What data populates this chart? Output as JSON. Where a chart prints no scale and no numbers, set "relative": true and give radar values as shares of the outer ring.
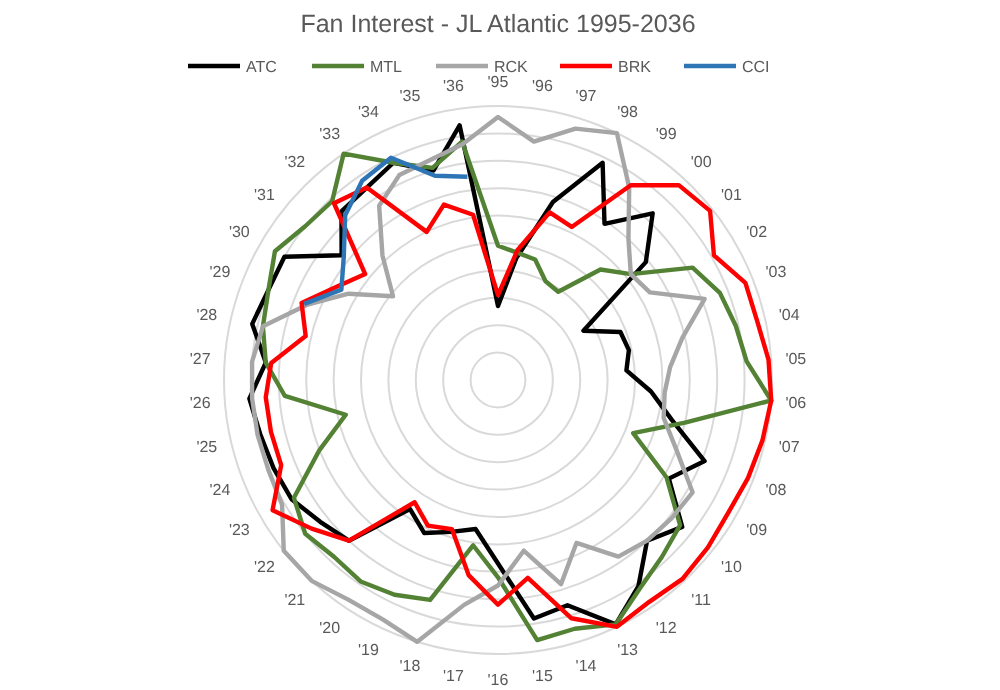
{
  "chart_data": {
    "type": "radar",
    "title": "Fan Interest - JL Atlantic 1995-2036",
    "relative": true,
    "grid": true,
    "legend": "top",
    "line_style": "solid",
    "marker": "none",
    "categories": [
      "'95",
      "'96",
      "'97",
      "'98",
      "'99",
      "'00",
      "'01",
      "'02",
      "'03",
      "'04",
      "'05",
      "'06",
      "'07",
      "'08",
      "'09",
      "'10",
      "'11",
      "'12",
      "'13",
      "'14",
      "'15",
      "'16",
      "'17",
      "'18",
      "'19",
      "'20",
      "'21",
      "'22",
      "'23",
      "'24",
      "'25",
      "'26",
      "'27",
      "'28",
      "'29",
      "'30",
      "'31",
      "'32",
      "'33",
      "'34",
      "'35",
      "'36"
    ],
    "series": [
      {
        "name": "ATC",
        "color": "#000000",
        "values": [
          0.27,
          0.45,
          0.68,
          0.88,
          0.69,
          0.83,
          0.69,
          0.36,
          0.48,
          0.49,
          0.47,
          0.56,
          0.65,
          0.81,
          0.72,
          0.86,
          0.8,
          0.91,
          0.99,
          0.86,
          0.88,
          0.67,
          0.55,
          0.58,
          0.62,
          0.57,
          0.8,
          0.83,
          0.87,
          0.88,
          0.89,
          0.91,
          0.85,
          0.92,
          0.9,
          0.9,
          0.73,
          0.84,
          0.85,
          0.88,
          0.8,
          0.94
        ]
      },
      {
        "name": "MTL",
        "color": "#548235",
        "values": [
          0.49,
          0.47,
          0.46,
          0.4,
          0.39,
          0.55,
          0.62,
          0.82,
          0.87,
          0.89,
          0.91,
          1.0,
          0.7,
          0.53,
          0.71,
          0.85,
          0.88,
          0.92,
          0.99,
          0.95,
          0.96,
          0.72,
          0.61,
          0.84,
          0.87,
          0.89,
          0.88,
          0.9,
          0.86,
          0.7,
          0.57,
          0.78,
          0.85,
          0.88,
          0.9,
          0.94,
          0.9,
          0.89,
          1.0,
          0.88,
          0.81,
          0.88
        ]
      },
      {
        "name": "RCK",
        "color": "#a6a6a6",
        "values": [
          0.96,
          0.88,
          0.96,
          1.0,
          0.85,
          0.7,
          0.62,
          0.64,
          0.81,
          0.69,
          0.63,
          0.61,
          0.62,
          0.7,
          0.82,
          0.81,
          0.8,
          0.78,
          0.66,
          0.78,
          0.63,
          0.75,
          0.83,
          1.0,
          0.97,
          0.97,
          1.0,
          1.0,
          0.91,
          0.9,
          0.9,
          0.9,
          0.9,
          0.88,
          0.75,
          0.63,
          0.49,
          0.62,
          0.77,
          0.83,
          0.84,
          0.87
        ]
      },
      {
        "name": "BRK",
        "color": "#ff0000",
        "values": [
          0.31,
          0.48,
          0.64,
          0.62,
          0.86,
          0.97,
          0.99,
          0.91,
          0.97,
          0.97,
          0.99,
          1.0,
          0.99,
          0.98,
          0.97,
          0.98,
          0.99,
          0.98,
          1.0,
          0.91,
          0.73,
          0.82,
          0.72,
          0.57,
          0.59,
          0.54,
          0.8,
          0.87,
          0.95,
          0.85,
          0.85,
          0.85,
          0.83,
          0.72,
          0.77,
          0.68,
          0.62,
          0.88,
          0.85,
          0.6,
          0.67,
          0.61
        ]
      },
      {
        "name": "CCI",
        "color": "#2e75b6",
        "values": [
          null,
          null,
          null,
          null,
          null,
          null,
          null,
          null,
          null,
          null,
          null,
          null,
          null,
          null,
          null,
          null,
          null,
          null,
          null,
          null,
          null,
          null,
          null,
          null,
          null,
          null,
          null,
          null,
          null,
          null,
          null,
          null,
          null,
          null,
          0.76,
          0.66,
          0.72,
          0.82,
          0.88,
          0.9,
          0.78,
          0.75
        ]
      }
    ]
  }
}
